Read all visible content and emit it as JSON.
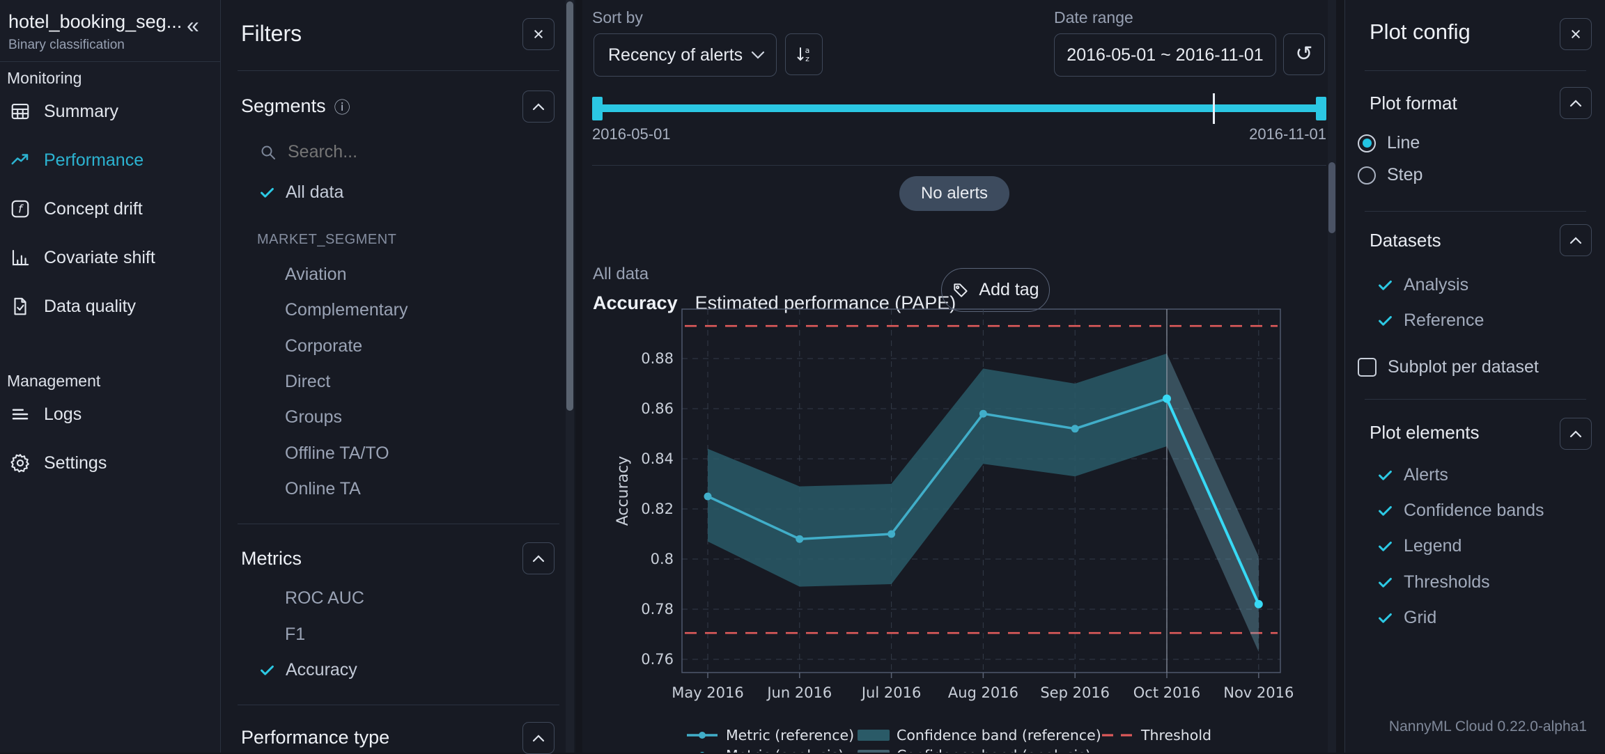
{
  "app": {
    "version_label": "NannyML Cloud 0.22.0-alpha1"
  },
  "sidebar": {
    "model_name": "hotel_booking_seg...",
    "model_type": "Binary classification",
    "collapse_glyph": "«",
    "monitoring": {
      "label": "Monitoring",
      "items": [
        "Summary",
        "Performance",
        "Concept drift",
        "Covariate shift",
        "Data quality"
      ]
    },
    "management": {
      "label": "Management",
      "items": [
        "Logs",
        "Settings"
      ]
    }
  },
  "filters": {
    "title": "Filters",
    "close_glyph": "×",
    "segments": {
      "title": "Segments",
      "info_glyph": "ⓘ",
      "search_placeholder": "Search...",
      "all_data_label": "All data",
      "group_label": "MARKET_SEGMENT",
      "options": [
        "Aviation",
        "Complementary",
        "Corporate",
        "Direct",
        "Groups",
        "Offline TA/TO",
        "Online TA"
      ],
      "selected": "All data"
    },
    "metrics": {
      "title": "Metrics",
      "options": [
        "ROC AUC",
        "F1",
        "Accuracy"
      ],
      "selected": "Accuracy"
    },
    "performance_type": {
      "title": "Performance type"
    }
  },
  "toolbar": {
    "sort_by_label": "Sort by",
    "sort_value": "Recency of alerts",
    "date_range_label": "Date range",
    "date_range_value": "2016-05-01 ~ 2016-11-01",
    "history_glyph": "↺"
  },
  "timeline": {
    "start": "2016-05-01",
    "end": "2016-11-01",
    "marker_fraction": 0.845
  },
  "alerts_badge": "No alerts",
  "plot_header": {
    "segment": "All data",
    "metric": "Accuracy",
    "subtitle": "Estimated performance (PAPE)",
    "add_tag_label": "Add tag"
  },
  "chart_data": {
    "type": "line",
    "title": "Accuracy - Estimated performance (PAPE)",
    "x": [
      "May 2016",
      "Jun 2016",
      "Jul 2016",
      "Aug 2016",
      "Sep 2016",
      "Oct 2016",
      "Nov 2016"
    ],
    "ylabel": "Accuracy",
    "yticks": [
      0.88,
      0.86,
      0.84,
      0.82,
      0.8,
      0.78,
      0.76
    ],
    "ylim": [
      0.7547,
      0.8997
    ],
    "grid": true,
    "legend_position": "bottom",
    "thresholds": {
      "upper": 0.893,
      "lower": 0.7705
    },
    "reference_analysis_split_index": 5,
    "series": [
      {
        "name": "Metric (reference)",
        "values": [
          0.825,
          0.808,
          0.81,
          0.858,
          0.852,
          0.864,
          null
        ]
      },
      {
        "name": "Metric (analysis)",
        "values": [
          null,
          null,
          null,
          null,
          null,
          0.864,
          0.782
        ]
      }
    ],
    "bands": [
      {
        "name": "Confidence band (reference)",
        "upper": [
          0.844,
          0.829,
          0.83,
          0.876,
          0.87,
          0.882,
          null
        ],
        "lower": [
          0.807,
          0.789,
          0.79,
          0.838,
          0.833,
          0.845,
          null
        ]
      },
      {
        "name": "Confidence band (analysis)",
        "upper": [
          null,
          null,
          null,
          null,
          null,
          0.882,
          0.801
        ],
        "lower": [
          null,
          null,
          null,
          null,
          null,
          0.845,
          0.763
        ]
      }
    ],
    "legend": {
      "rows": [
        [
          {
            "swatch": "line-ref",
            "label": "Metric (reference)"
          },
          {
            "swatch": "band-ref",
            "label": "Confidence band (reference)"
          },
          {
            "swatch": "threshold",
            "label": "Threshold"
          }
        ],
        [
          {
            "swatch": "line-ana",
            "label": "Metric (analysis)"
          },
          {
            "swatch": "band-ana",
            "label": "Confidence band (analysis)"
          }
        ]
      ]
    },
    "colors": {
      "line_ref": "#41aec9",
      "line_ana": "#38d9f5",
      "band_ref": "#2b5e6c",
      "band_ana": "#6fa9bc",
      "threshold": "#dd5a5a",
      "grid": "#333b49",
      "border": "#4e586c",
      "divider": "#9aa2b0",
      "tick_text": "#c9cfd9"
    }
  },
  "plot_config": {
    "title": "Plot config",
    "close_glyph": "×",
    "plot_format": {
      "title": "Plot format",
      "options": [
        "Line",
        "Step"
      ],
      "selected": "Line"
    },
    "datasets": {
      "title": "Datasets",
      "checked_items": [
        "Analysis",
        "Reference"
      ],
      "subplot_label": "Subplot per dataset",
      "subplot_checked": false
    },
    "plot_elements": {
      "title": "Plot elements",
      "checked_items": [
        "Alerts",
        "Confidence bands",
        "Legend",
        "Thresholds",
        "Grid"
      ]
    }
  }
}
